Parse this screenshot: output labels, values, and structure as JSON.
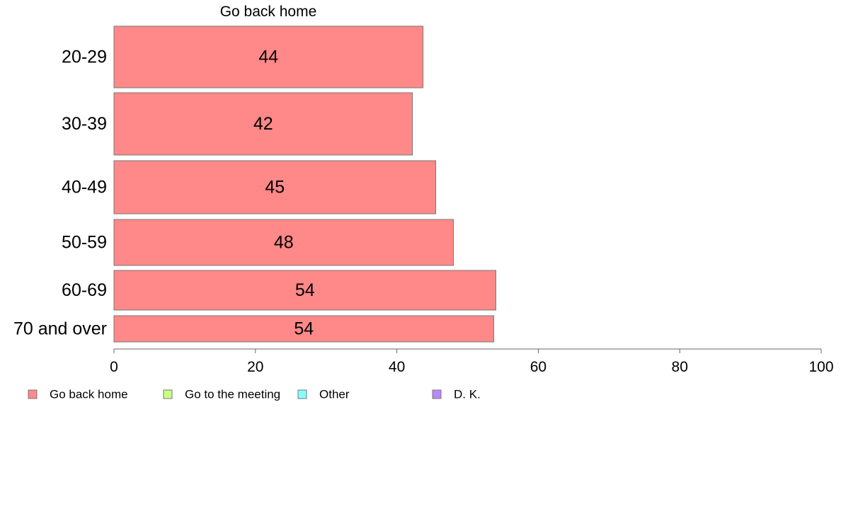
{
  "chart_data": {
    "type": "bar",
    "orientation": "horizontal",
    "title": "Go back home",
    "xlabel": "",
    "ylabel": "",
    "categories": [
      "20-29",
      "30-39",
      "40-49",
      "50-59",
      "60-69",
      "70 and over"
    ],
    "series": [
      {
        "name": "Go back home",
        "color": "#ff8888",
        "values": [
          43.7,
          42.2,
          45.5,
          48.0,
          54.0,
          53.7
        ],
        "labels": [
          "44",
          "42",
          "45",
          "48",
          "54",
          "54"
        ]
      }
    ],
    "xlim": [
      0,
      100
    ],
    "xticks": [
      0,
      20,
      40,
      60,
      80,
      100
    ],
    "grid": false,
    "legend": {
      "position": "bottom",
      "entries": [
        {
          "label": "Go back home",
          "color": "#ff8888"
        },
        {
          "label": "Go to the meeting",
          "color": "#ccff88"
        },
        {
          "label": "Other",
          "color": "#88ffff"
        },
        {
          "label": "D. K.",
          "color": "#bb88ff"
        }
      ]
    }
  }
}
